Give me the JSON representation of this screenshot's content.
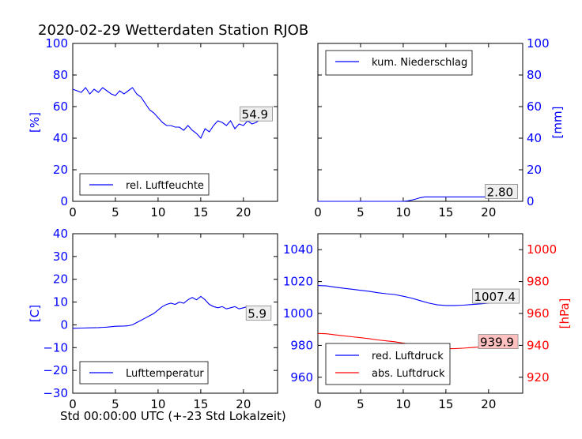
{
  "page": {
    "title": "2020-02-29 Wetterdaten Station RJOB",
    "footer": "Std 00:00:00 UTC (+-23 Std Lokalzeit)"
  },
  "colors": {
    "primary": "#0000ff",
    "secondary": "#ff0000",
    "label_box_red": "#ffc0c0",
    "label_box_grey": "#eeeeee"
  },
  "chart_data": [
    {
      "type": "line",
      "ylabel": "[%]",
      "xlim": [
        0,
        24
      ],
      "ylim": [
        0,
        100
      ],
      "xticks": [
        "0",
        "5",
        "10",
        "15",
        "20"
      ],
      "yticks": [
        "0",
        "20",
        "40",
        "60",
        "80",
        "100"
      ],
      "y_axis_side": "left",
      "legend": "bottom-left",
      "value_label": "54.9",
      "series": [
        {
          "name": "rel. Luftfeuchte",
          "color": "#0000ff",
          "x": [
            0,
            0.5,
            1,
            1.5,
            2,
            2.5,
            3,
            3.5,
            4,
            4.5,
            5,
            5.5,
            6,
            6.5,
            7,
            7.5,
            8,
            8.5,
            9,
            9.5,
            10,
            10.5,
            11,
            11.5,
            12,
            12.5,
            13,
            13.5,
            14,
            14.5,
            15,
            15.5,
            16,
            16.5,
            17,
            17.5,
            18,
            18.5,
            19,
            19.5,
            20,
            20.5,
            21,
            21.5,
            22,
            22.5,
            23
          ],
          "values": [
            71,
            70,
            69,
            72,
            68,
            71,
            69,
            72,
            70,
            68,
            67,
            70,
            68,
            70,
            72,
            68,
            66,
            62,
            58,
            56,
            53,
            50,
            48,
            48,
            47,
            47,
            45,
            48,
            45,
            43,
            40,
            46,
            44,
            48,
            51,
            50,
            48,
            51,
            46,
            49,
            48,
            51,
            49,
            50,
            52,
            54,
            55
          ]
        }
      ]
    },
    {
      "type": "line",
      "ylabel": "[mm]",
      "xlim": [
        0,
        24
      ],
      "ylim": [
        0,
        100
      ],
      "xticks": [
        "0",
        "5",
        "10",
        "15",
        "20"
      ],
      "yticks": [
        "0",
        "20",
        "40",
        "60",
        "80",
        "100"
      ],
      "y_axis_side": "right",
      "legend": "top-left",
      "value_label": "2.80",
      "series": [
        {
          "name": "kum. Niederschlag",
          "color": "#0000ff",
          "x": [
            0,
            10,
            10.5,
            11,
            11.5,
            12,
            12.5,
            15,
            18,
            20,
            23
          ],
          "values": [
            0,
            0,
            0.3,
            0.8,
            1.5,
            2.3,
            2.8,
            2.8,
            2.8,
            2.8,
            2.8
          ]
        }
      ]
    },
    {
      "type": "line",
      "ylabel": "[C]",
      "xlim": [
        0,
        24
      ],
      "ylim": [
        -30,
        40
      ],
      "xticks": [
        "0",
        "5",
        "10",
        "15",
        "20"
      ],
      "yticks": [
        "−30",
        "−20",
        "−10",
        "0",
        "10",
        "20",
        "30",
        "40"
      ],
      "y_axis_side": "left",
      "legend": "bottom-left",
      "value_label": "5.9",
      "series": [
        {
          "name": "Lufttemperatur",
          "color": "#0000ff",
          "x": [
            0,
            1,
            2,
            3,
            4,
            5,
            6,
            6.5,
            7,
            7.5,
            8,
            8.5,
            9,
            9.5,
            10,
            10.5,
            11,
            11.5,
            12,
            12.5,
            13,
            13.5,
            14,
            14.5,
            15,
            15.5,
            16,
            16.5,
            17,
            17.5,
            18,
            18.5,
            19,
            19.5,
            20,
            20.5,
            21,
            21.5,
            22,
            22.5,
            23
          ],
          "values": [
            -1.5,
            -1.4,
            -1.3,
            -1.2,
            -1.0,
            -0.6,
            -0.5,
            -0.4,
            0,
            1,
            2,
            3,
            4,
            5,
            6.5,
            8,
            9,
            9.5,
            9,
            10,
            9.5,
            11,
            12,
            11,
            12.5,
            11,
            9,
            8,
            7.5,
            8,
            7,
            7.5,
            8,
            7,
            7.5,
            8,
            7,
            7.5,
            7,
            7,
            6
          ]
        }
      ]
    },
    {
      "type": "line",
      "ylabel": "[hPa]",
      "xlim": [
        0,
        24
      ],
      "ylim": [
        950,
        1050
      ],
      "ylim_right": [
        910,
        1010
      ],
      "xticks": [
        "0",
        "5",
        "10",
        "15",
        "20"
      ],
      "yticks": [
        "960",
        "980",
        "1000",
        "1020",
        "1040"
      ],
      "yticks_right": [
        "920",
        "940",
        "960",
        "980",
        "1000"
      ],
      "y_axis_side": "both",
      "legend": "bottom-left",
      "value_labels": [
        "1007.4",
        "939.9"
      ],
      "series": [
        {
          "name": "red. Luftdruck",
          "color": "#0000ff",
          "axis": "left",
          "x": [
            0,
            1,
            2,
            3,
            4,
            5,
            6,
            7,
            8,
            9,
            10,
            11,
            12,
            13,
            14,
            15,
            16,
            17,
            18,
            19,
            20,
            21,
            22,
            23
          ],
          "values": [
            1017.5,
            1017.3,
            1016.5,
            1015.8,
            1015.2,
            1014.5,
            1013.9,
            1013.0,
            1012.4,
            1011.9,
            1010.8,
            1009.6,
            1008.0,
            1006.5,
            1005.4,
            1005.0,
            1005.0,
            1005.2,
            1005.6,
            1006.0,
            1006.5,
            1006.9,
            1007.1,
            1007.4
          ]
        },
        {
          "name": "abs. Luftdruck",
          "color": "#ff0000",
          "axis": "right",
          "x": [
            0,
            1,
            2,
            3,
            4,
            5,
            6,
            7,
            8,
            9,
            10,
            11,
            12,
            13,
            14,
            15,
            16,
            17,
            18,
            19,
            20,
            21,
            22,
            23
          ],
          "values": [
            947.5,
            947.3,
            946.6,
            946.0,
            945.4,
            944.8,
            944.2,
            943.4,
            942.8,
            942.3,
            941.4,
            940.5,
            939.5,
            938.6,
            938.1,
            937.9,
            937.9,
            938.2,
            938.6,
            939.0,
            939.3,
            939.6,
            939.8,
            939.9
          ]
        }
      ]
    }
  ]
}
